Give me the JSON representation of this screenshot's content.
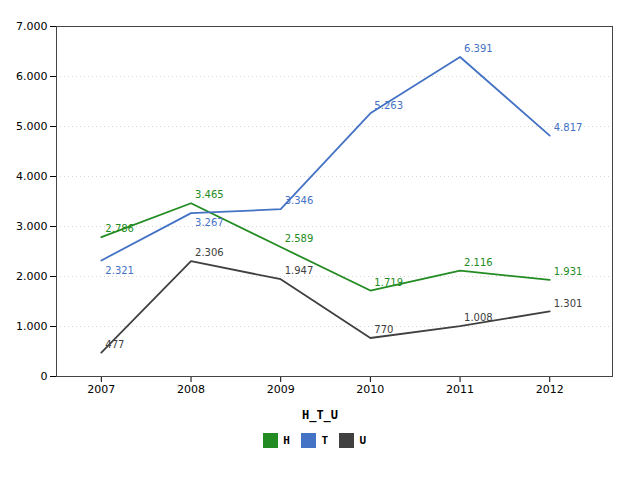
{
  "chart_data": {
    "type": "line",
    "x": [
      2007,
      2008,
      2009,
      2010,
      2011,
      2012
    ],
    "xlim": [
      2006.5,
      2012.7
    ],
    "xticks": [
      2007,
      2008,
      2009,
      2010,
      2011,
      2012
    ],
    "ylim": [
      0,
      7.0
    ],
    "yticks": [
      0,
      {
        "value": 1.0,
        "label": "1.000"
      },
      {
        "value": 2.0,
        "label": "2.000"
      },
      {
        "value": 3.0,
        "label": "3.000"
      },
      {
        "value": 4.0,
        "label": "4.000"
      },
      {
        "value": 5.0,
        "label": "5.000"
      },
      {
        "value": 6.0,
        "label": "6.000"
      },
      {
        "value": 7.0,
        "label": "7.000"
      }
    ],
    "grid": true,
    "legend": "bottom",
    "legend_title": "H_T_U",
    "data_labels": true,
    "series": [
      {
        "name": "H",
        "color": "#228B22",
        "values": [
          2.786,
          3.465,
          2.589,
          1.719,
          2.116,
          1.931
        ]
      },
      {
        "name": "T",
        "color": "#4472C4",
        "values": [
          2.321,
          3.267,
          3.346,
          5.263,
          6.391,
          4.817
        ]
      },
      {
        "name": "U",
        "color": "#404040",
        "values": [
          0.477,
          2.306,
          1.947,
          0.77,
          1.008,
          1.301
        ],
        "value_labels": [
          "477",
          "2.306",
          "1.947",
          "770",
          "1.008",
          "1.301"
        ]
      }
    ]
  }
}
